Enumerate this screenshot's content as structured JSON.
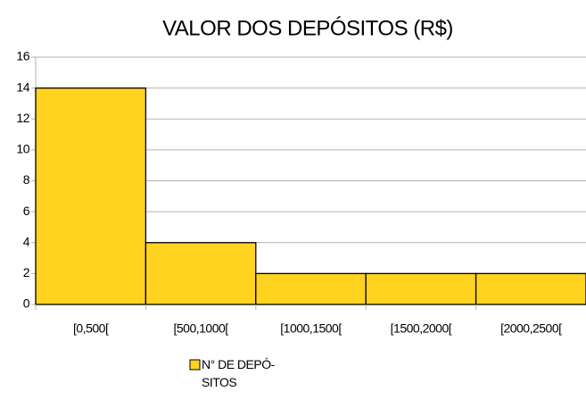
{
  "chart_data": {
    "type": "bar",
    "title": "VALOR DOS DEPÓSITOS (R$)",
    "categories": [
      "[0,500[",
      "[500,1000[",
      "[1000,1500[",
      "[1500,2000[",
      "[2000,2500["
    ],
    "series": [
      {
        "name": "N° DE DEPÓ-SITOS",
        "color": "#ffd320",
        "values": [
          14,
          4,
          2,
          2,
          2
        ]
      }
    ],
    "ylim": [
      0,
      16
    ],
    "yticks": [
      0,
      2,
      4,
      6,
      8,
      10,
      12,
      14,
      16
    ],
    "grid": true,
    "legend": "bottom"
  }
}
